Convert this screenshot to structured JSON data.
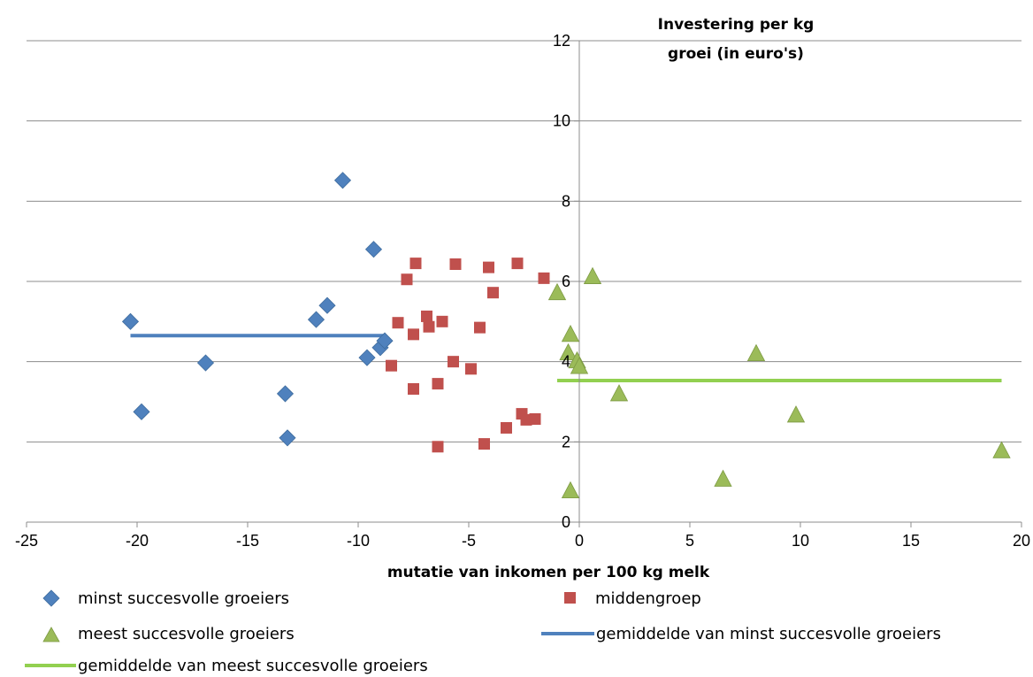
{
  "chart_data": {
    "type": "scatter",
    "xlabel": "mutatie van inkomen per 100 kg melk",
    "ylabel_lines": [
      "Investering per kg",
      "groei (in euro's)"
    ],
    "xlim": [
      -25,
      20
    ],
    "ylim": [
      0,
      12
    ],
    "x_ticks": [
      "-25",
      "-20",
      "-15",
      "-10",
      "-5",
      "0",
      "5",
      "10",
      "15",
      "20"
    ],
    "y_ticks": [
      "0",
      "2",
      "4",
      "6",
      "8",
      "10",
      "12"
    ],
    "grid": "horizontal",
    "legend_position": "bottom",
    "series": [
      {
        "name": "minst succesvolle groeiers",
        "marker": "diamond",
        "color": "#4F81BD",
        "points": [
          [
            -20.3,
            5.0
          ],
          [
            -19.8,
            2.75
          ],
          [
            -16.9,
            3.97
          ],
          [
            -13.3,
            3.2
          ],
          [
            -13.2,
            2.1
          ],
          [
            -11.9,
            5.05
          ],
          [
            -11.4,
            5.4
          ],
          [
            -10.7,
            8.52
          ],
          [
            -9.6,
            4.1
          ],
          [
            -9.3,
            6.8
          ],
          [
            -9.0,
            4.35
          ],
          [
            -8.8,
            4.52
          ]
        ]
      },
      {
        "name": "middengroep",
        "marker": "square",
        "color": "#C0504D",
        "points": [
          [
            -8.5,
            3.9
          ],
          [
            -8.2,
            4.97
          ],
          [
            -7.8,
            6.05
          ],
          [
            -7.5,
            4.68
          ],
          [
            -7.5,
            3.32
          ],
          [
            -7.4,
            6.45
          ],
          [
            -6.9,
            5.13
          ],
          [
            -6.8,
            4.87
          ],
          [
            -6.4,
            3.45
          ],
          [
            -6.4,
            1.88
          ],
          [
            -6.2,
            5.0
          ],
          [
            -5.7,
            4.0
          ],
          [
            -5.6,
            6.43
          ],
          [
            -4.9,
            3.82
          ],
          [
            -4.5,
            4.85
          ],
          [
            -4.3,
            1.95
          ],
          [
            -4.1,
            6.35
          ],
          [
            -3.9,
            5.72
          ],
          [
            -3.3,
            2.35
          ],
          [
            -2.8,
            6.45
          ],
          [
            -2.6,
            2.7
          ],
          [
            -2.4,
            2.55
          ],
          [
            -2.0,
            2.57
          ],
          [
            -1.6,
            6.08
          ]
        ]
      },
      {
        "name": "meest succesvolle groeiers",
        "marker": "triangle",
        "color": "#9BBB59",
        "points": [
          [
            -1.0,
            5.72
          ],
          [
            -0.5,
            4.22
          ],
          [
            -0.4,
            4.68
          ],
          [
            -0.4,
            0.78
          ],
          [
            -0.1,
            4.02
          ],
          [
            0.0,
            3.88
          ],
          [
            0.6,
            6.12
          ],
          [
            1.8,
            3.2
          ],
          [
            6.5,
            1.07
          ],
          [
            8.0,
            4.2
          ],
          [
            9.8,
            2.67
          ],
          [
            19.1,
            1.78
          ]
        ]
      }
    ],
    "lines": [
      {
        "name": "gemiddelde van minst succesvolle groeiers",
        "color": "#4F81BD",
        "x": [
          -20.3,
          -8.8
        ],
        "y": [
          4.65,
          4.65
        ]
      },
      {
        "name": "gemiddelde van meest succesvolle groeiers",
        "color": "#92D050",
        "x": [
          -1.0,
          19.1
        ],
        "y": [
          3.53,
          3.53
        ]
      }
    ]
  }
}
